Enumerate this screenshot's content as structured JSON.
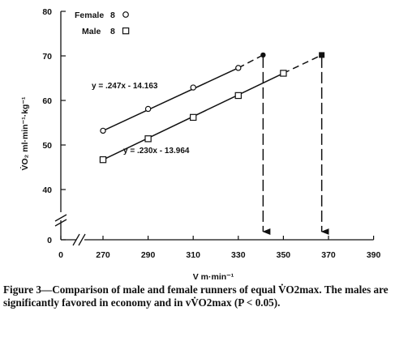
{
  "chart_data": {
    "type": "line",
    "xlabel": "V m·min⁻¹",
    "ylabel": "V̇O₂ ml·min⁻¹·kg⁻¹",
    "xlim": [
      270,
      390
    ],
    "ylim": [
      40,
      80
    ],
    "x_ticks": [
      "0",
      "270",
      "290",
      "310",
      "330",
      "350",
      "370",
      "390"
    ],
    "y_ticks": [
      "0",
      "40",
      "50",
      "60",
      "70",
      "80"
    ],
    "axis_breaks": [
      "x",
      "y"
    ],
    "legend": [
      {
        "label": "Female",
        "n": "8",
        "marker": "circle"
      },
      {
        "label": "Male",
        "n": "8",
        "marker": "square"
      }
    ],
    "series": [
      {
        "marker": "circle",
        "equation": "y = .247x - 14.163",
        "x": [
          270,
          290,
          310,
          330
        ],
        "y": [
          53.2,
          58.1,
          62.9,
          67.3
        ],
        "extrapolated_to": {
          "x": 341,
          "y": 70.2
        },
        "vVO2max": 341
      },
      {
        "marker": "square",
        "equation": "y = .230x - 13.964",
        "x": [
          270,
          290,
          310,
          330,
          350
        ],
        "y": [
          46.7,
          51.4,
          56.2,
          61.1,
          66.1
        ],
        "extrapolated_to": {
          "x": 367,
          "y": 70.2
        },
        "vVO2max": 367
      }
    ],
    "caption": "Figure 3—Comparison of male and female runners of equal V̇O2max. The males are significantly favored in economy and in vV̇O2max (P < 0.05).",
    "grid": false
  }
}
